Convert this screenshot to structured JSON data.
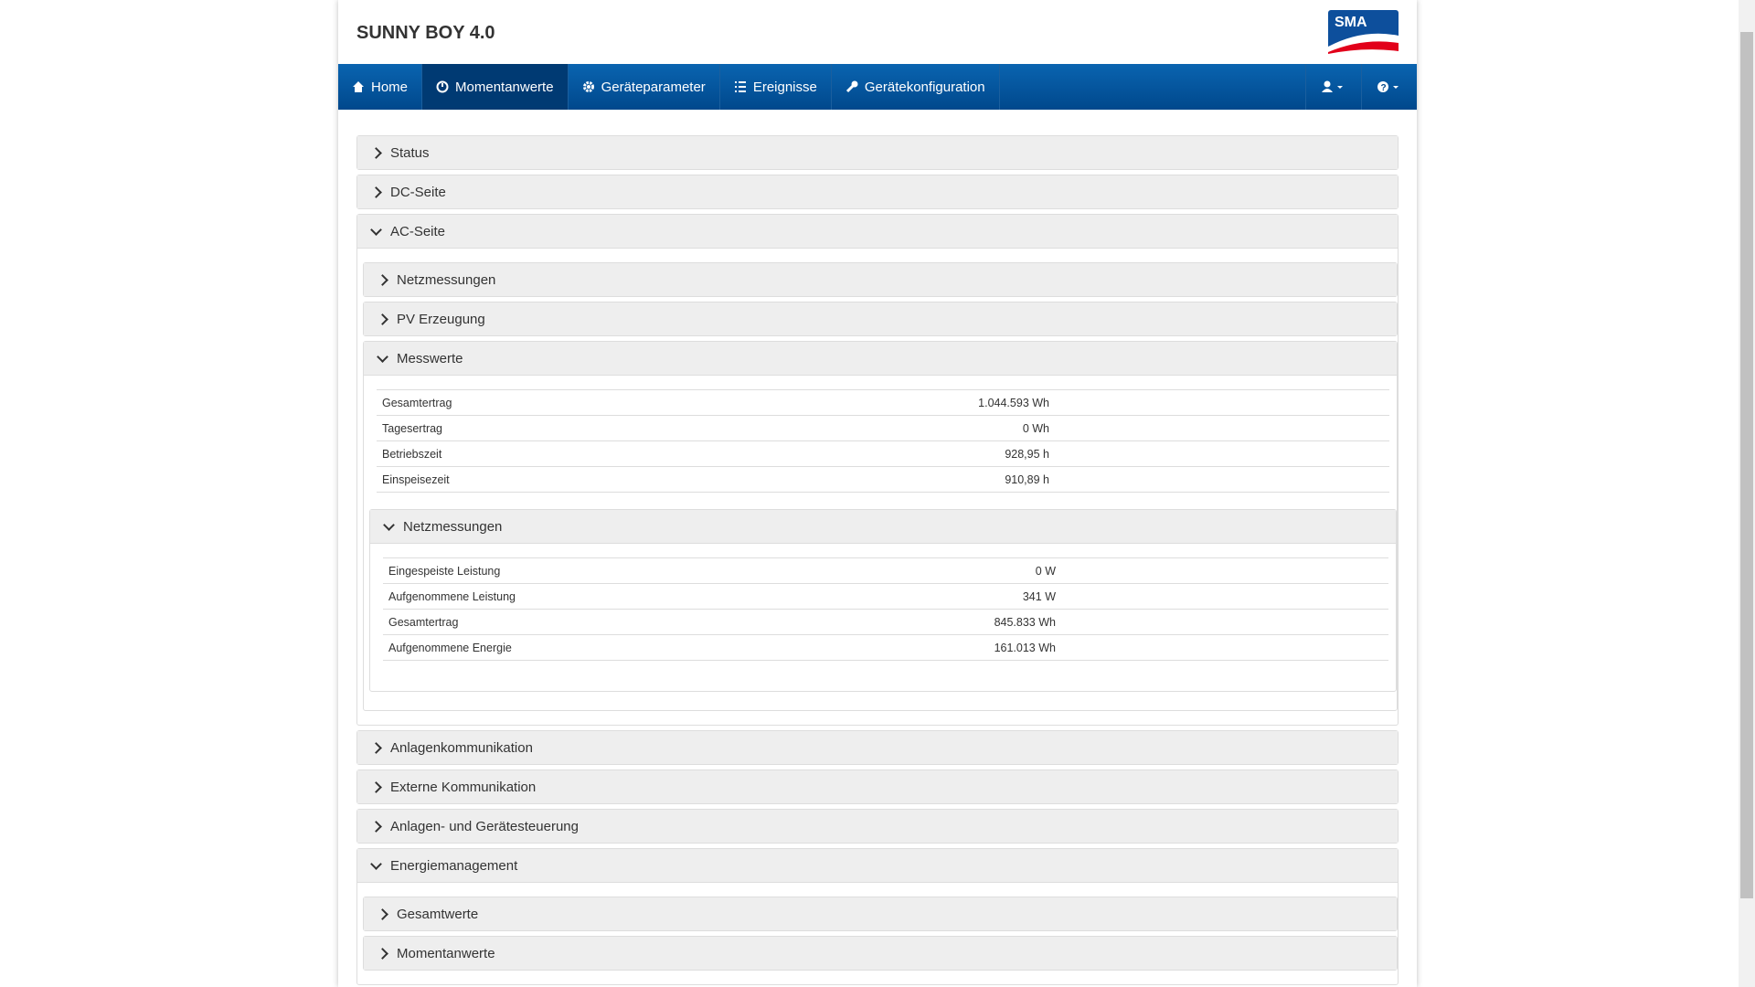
{
  "header": {
    "title": "SUNNY BOY 4.0",
    "logo": "SMA"
  },
  "nav": {
    "items": [
      "Home",
      "Momentanwerte",
      "Geräteparameter",
      "Ereignisse",
      "Gerätekonfiguration"
    ],
    "active": 1
  },
  "sections": [
    {
      "title": "Status",
      "open": false
    },
    {
      "title": "DC-Seite",
      "open": false
    },
    {
      "title": "AC-Seite",
      "open": true,
      "children": [
        {
          "title": "Netzmessungen",
          "open": false
        },
        {
          "title": "PV Erzeugung",
          "open": false
        },
        {
          "title": "Messwerte",
          "open": true,
          "rows": [
            [
              "Gesamtertrag",
              "1.044.593 Wh"
            ],
            [
              "Tagesertrag",
              "0 Wh"
            ],
            [
              "Betriebszeit",
              "928,95 h"
            ],
            [
              "Einspeisezeit",
              "910,89 h"
            ]
          ],
          "children": [
            {
              "title": "Netzmessungen",
              "open": true,
              "rows": [
                [
                  "Eingespeiste Leistung",
                  "0 W"
                ],
                [
                  "Aufgenommene Leistung",
                  "341 W"
                ],
                [
                  "Gesamtertrag",
                  "845.833 Wh"
                ],
                [
                  "Aufgenommene Energie",
                  "161.013 Wh"
                ]
              ]
            }
          ]
        }
      ]
    },
    {
      "title": "Anlagenkommunikation",
      "open": false
    },
    {
      "title": "Externe Kommunikation",
      "open": false
    },
    {
      "title": "Anlagen- und Gerätesteuerung",
      "open": false
    },
    {
      "title": "Energiemanagement",
      "open": true,
      "children": [
        {
          "title": "Gesamtwerte",
          "open": false
        },
        {
          "title": "Momentanwerte",
          "open": false
        }
      ]
    }
  ]
}
